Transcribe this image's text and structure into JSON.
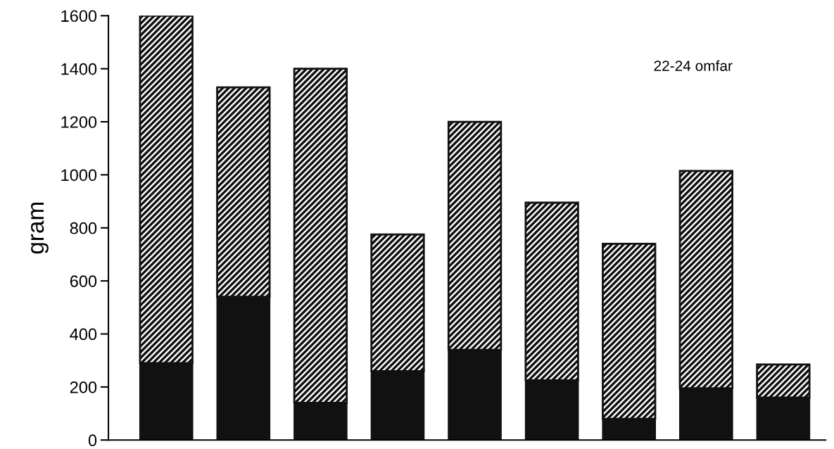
{
  "chart_data": {
    "type": "bar",
    "stacked": true,
    "ylabel": "gram",
    "categories": [
      null,
      null,
      null,
      null,
      null,
      null,
      null,
      null,
      null
    ],
    "series": [
      {
        "color": "#111111",
        "values": [
          290,
          540,
          140,
          260,
          340,
          225,
          80,
          195,
          160
        ]
      },
      {
        "color": "#111111",
        "values": [
          1310,
          790,
          1260,
          515,
          860,
          670,
          660,
          820,
          125
        ]
      }
    ],
    "ylim": [
      0,
      1600
    ],
    "yticks": [
      0,
      200,
      400,
      600,
      800,
      1000,
      1200,
      1400,
      1600
    ],
    "annotations": [
      "22-24 omfar"
    ],
    "grid": false,
    "legend": false
  }
}
